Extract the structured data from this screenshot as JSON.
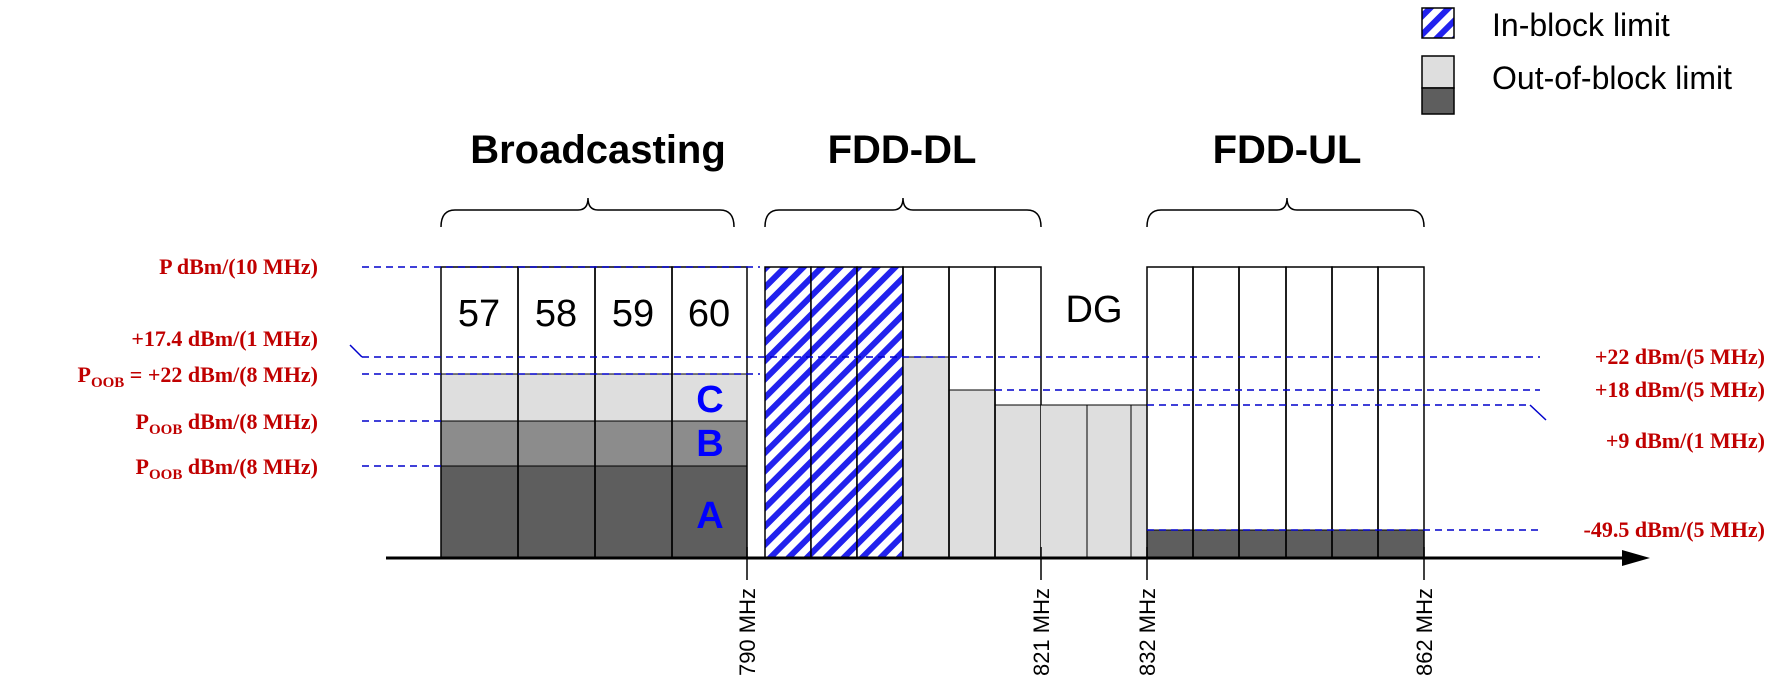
{
  "colors": {
    "axis": "#000000",
    "annotation": "#c00000",
    "guide_line": "#0000cc",
    "block_letter": "#0000ff",
    "hatch": "#2222ee",
    "oob_light": "#dedede",
    "oob_mid": "#8c8c8c",
    "oob_dark": "#5e5e5e"
  },
  "legend": {
    "in_block": "In-block limit",
    "out_of_block": "Out-of-block limit"
  },
  "sections": {
    "broadcasting": "Broadcasting",
    "fdd_dl": "FDD-DL",
    "fdd_ul": "FDD-UL"
  },
  "channels": [
    "57",
    "58",
    "59",
    "60"
  ],
  "duplex_gap": "DG",
  "blocks": {
    "a": "A",
    "b": "B",
    "c": "C"
  },
  "frequency_ticks": [
    "790 MHz",
    "821 MHz",
    "832 MHz",
    "862 MHz"
  ],
  "left_labels": {
    "p_10mhz": "P dBm/(10 MHz)",
    "plus_17_4": "+17.4 dBm/(1 MHz)",
    "poob_22": {
      "sym": "P",
      "sub": "OOB",
      "text": " = +22 dBm/(8 MHz)"
    },
    "poob_b": {
      "sym": "P",
      "sub": "OOB",
      "text": " dBm/(8 MHz)"
    },
    "poob_a": {
      "sym": "P",
      "sub": "OOB",
      "text": " dBm/(8 MHz)"
    }
  },
  "right_labels": {
    "plus_22": "+22 dBm/(5 MHz)",
    "plus_18": "+18 dBm/(5 MHz)",
    "plus_9": "+9 dBm/(1 MHz)",
    "minus_49_5": "-49.5 dBm/(5 MHz)"
  }
}
